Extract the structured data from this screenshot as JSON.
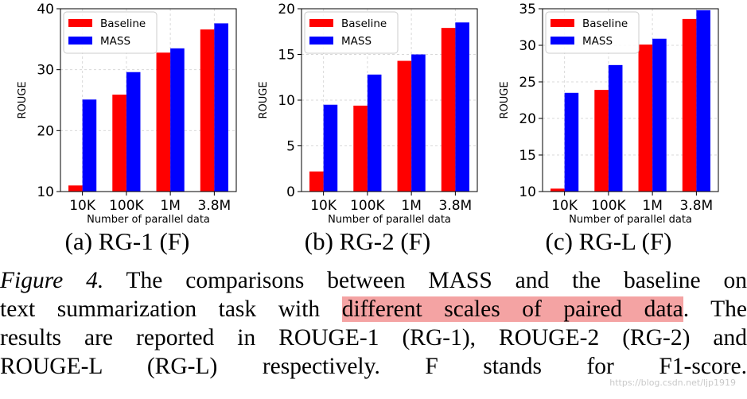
{
  "chart_data": [
    {
      "type": "bar",
      "ylabel": "ROUGE",
      "xlabel": "Number of parallel data",
      "categories": [
        "10K",
        "100K",
        "1M",
        "3.8M"
      ],
      "ylim": [
        10,
        40
      ],
      "yticks": [
        10,
        20,
        30,
        40
      ],
      "grid": true,
      "legend": "top-left",
      "series": [
        {
          "name": "Baseline",
          "color": "#ff0000",
          "values": [
            11.0,
            25.9,
            32.8,
            36.6
          ]
        },
        {
          "name": "MASS",
          "color": "#0000ff",
          "values": [
            25.1,
            29.6,
            33.5,
            37.6
          ]
        }
      ],
      "subcaption": "(a) RG-1 (F)"
    },
    {
      "type": "bar",
      "ylabel": "ROUGE",
      "xlabel": "Number of parallel data",
      "categories": [
        "10K",
        "100K",
        "1M",
        "3.8M"
      ],
      "ylim": [
        0,
        20
      ],
      "yticks": [
        0,
        5,
        10,
        15,
        20
      ],
      "grid": true,
      "legend": "top-left",
      "series": [
        {
          "name": "Baseline",
          "color": "#ff0000",
          "values": [
            2.2,
            9.4,
            14.3,
            17.9
          ]
        },
        {
          "name": "MASS",
          "color": "#0000ff",
          "values": [
            9.5,
            12.8,
            15.0,
            18.5
          ]
        }
      ],
      "subcaption": "(b) RG-2 (F)"
    },
    {
      "type": "bar",
      "ylabel": "ROUGE",
      "xlabel": "Number of parallel data",
      "categories": [
        "10K",
        "100K",
        "1M",
        "3.8M"
      ],
      "ylim": [
        10,
        35
      ],
      "yticks": [
        10,
        15,
        20,
        25,
        30,
        35
      ],
      "grid": true,
      "legend": "top-left",
      "series": [
        {
          "name": "Baseline",
          "color": "#ff0000",
          "values": [
            10.4,
            23.9,
            30.1,
            33.6
          ]
        },
        {
          "name": "MASS",
          "color": "#0000ff",
          "values": [
            23.5,
            27.3,
            30.9,
            34.8
          ]
        }
      ],
      "subcaption": "(c) RG-L (F)"
    }
  ],
  "caption": {
    "lines": [
      [
        {
          "text": "Figure 4.",
          "style": "figlabel"
        },
        {
          "text": " The comparisons between MASS and the baseline on",
          "style": "normal"
        }
      ],
      [
        {
          "text": "text summarization task with ",
          "style": "normal"
        },
        {
          "text": "different scales of paired data",
          "style": "highlight"
        },
        {
          "text": ". The",
          "style": "normal"
        }
      ],
      [
        {
          "text": "results are reported in ROUGE-1 (RG-1), ROUGE-2 (RG-2) and",
          "style": "normal"
        }
      ],
      [
        {
          "text": "ROUGE-L (RG-L) respectively. F stands for F1-score.",
          "style": "normal"
        }
      ]
    ],
    "highlight_color": "#f4a3a3"
  },
  "watermark": "https://blog.csdn.net/ljp1919"
}
